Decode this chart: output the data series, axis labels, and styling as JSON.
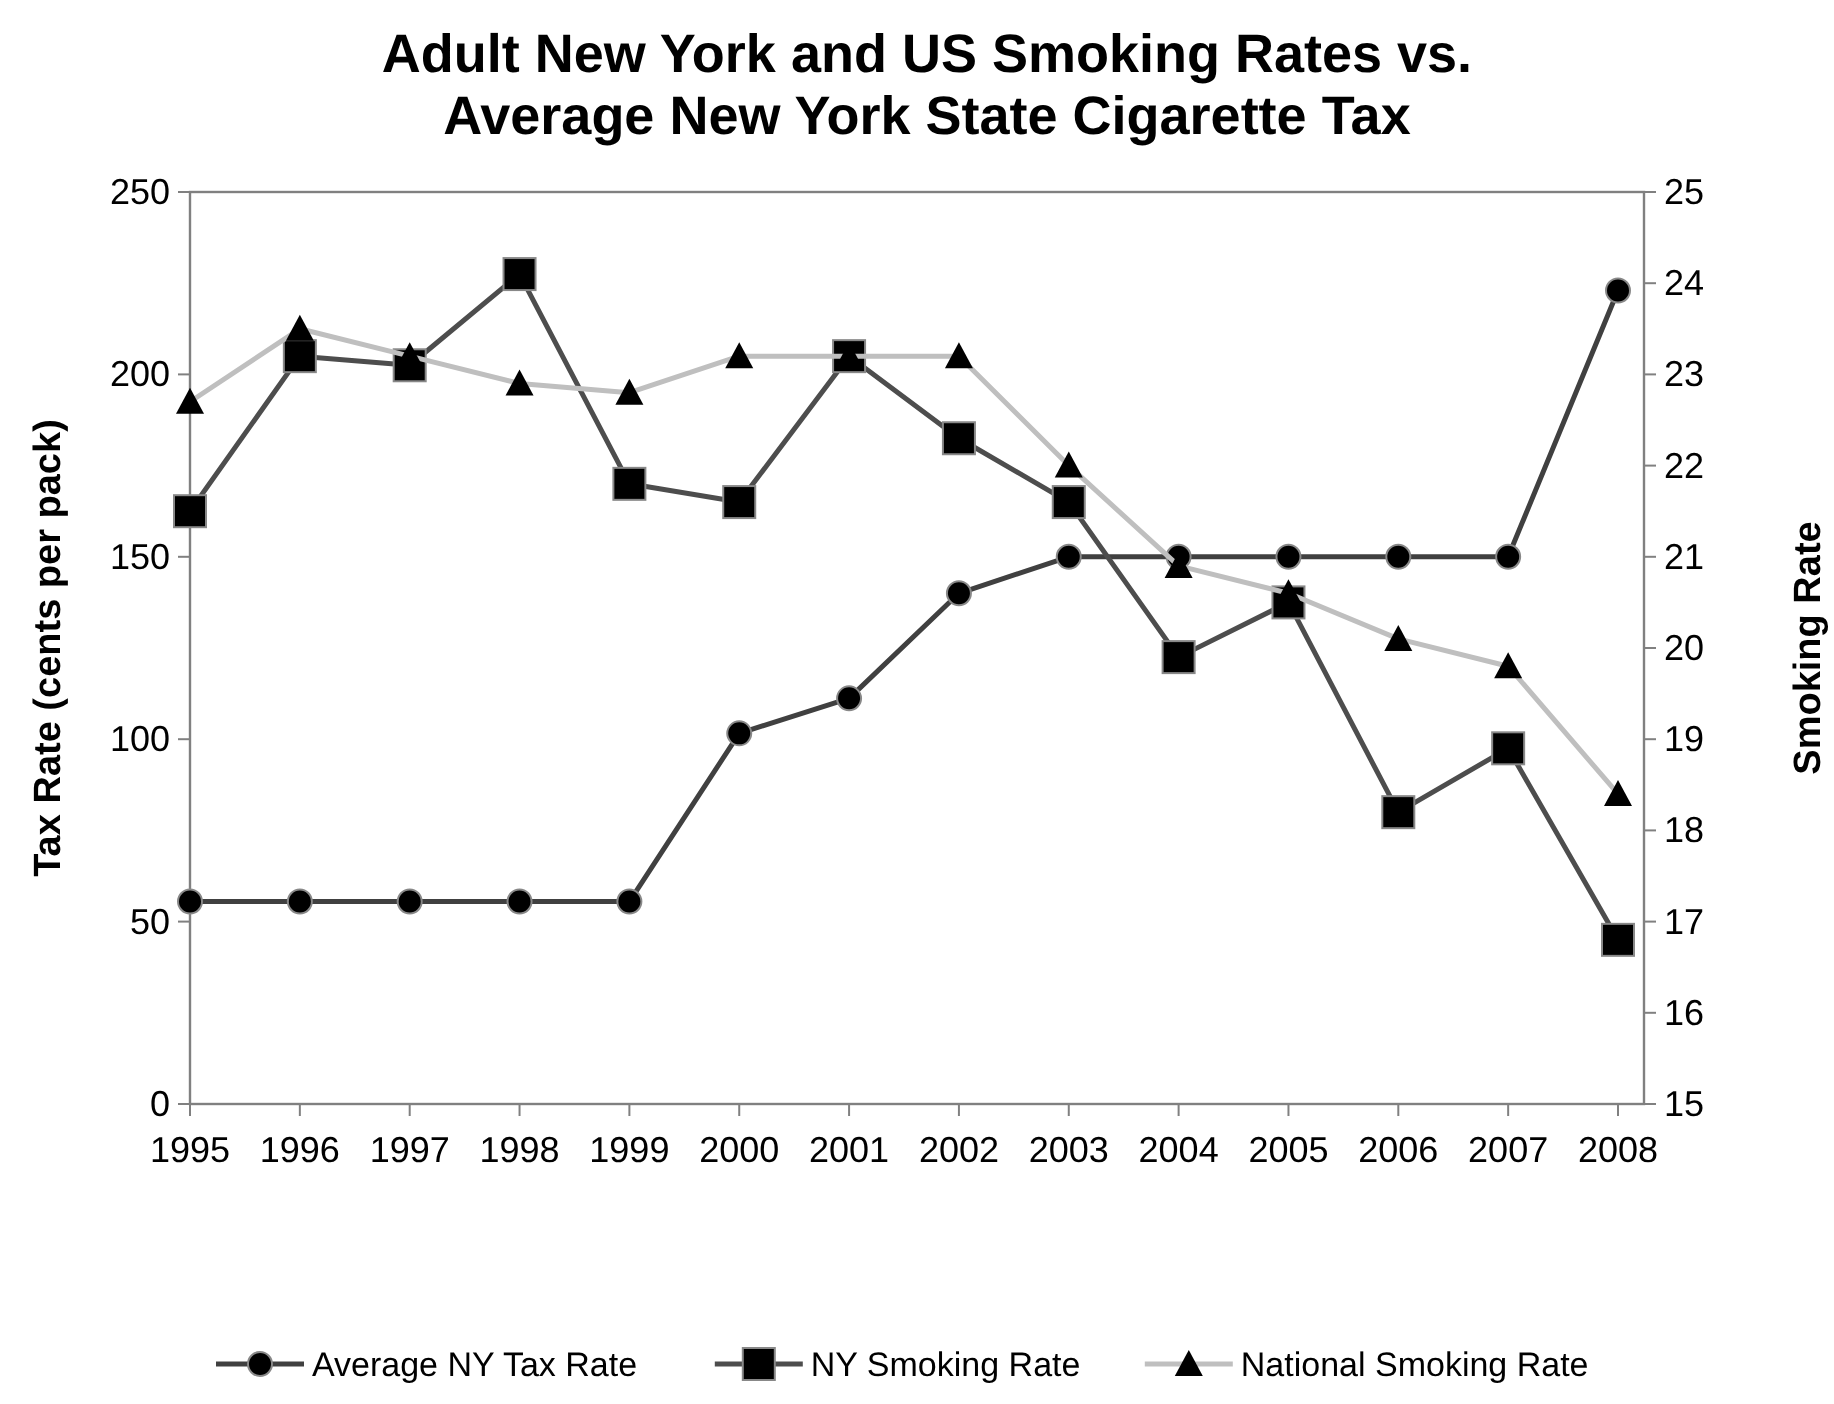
{
  "chart_data": {
    "type": "line",
    "title": "Adult New York and US Smoking Rates vs. Average New York State Cigarette Tax",
    "ylabel": "Tax Rate (cents per pack)",
    "y2label": "Smoking Rate",
    "categories": [
      "1995",
      "1996",
      "1997",
      "1998",
      "1999",
      "2000",
      "2001",
      "2002",
      "2003",
      "2004",
      "2005",
      "2006",
      "2007",
      "2008"
    ],
    "series": [
      {
        "name": "Average NY Tax Rate",
        "color": "#404040",
        "marker": "circle",
        "values": [
          55.5,
          55.5,
          55.5,
          55.5,
          55.5,
          101.6,
          111.2,
          140,
          150,
          150,
          150,
          150,
          150,
          223
        ]
      },
      {
        "name": "NY Smoking Rate",
        "color": "#4d4d4d",
        "marker": "square",
        "axis": "y2",
        "values": [
          21.5,
          23.2,
          23.1,
          24.1,
          21.8,
          21.6,
          23.2,
          22.3,
          21.6,
          19.9,
          20.5,
          18.2,
          18.9,
          16.8
        ]
      },
      {
        "name": "National Smoking Rate",
        "color": "#bfbfbf",
        "marker": "triangle",
        "axis": "y2",
        "values": [
          22.7,
          23.5,
          23.2,
          22.9,
          22.8,
          23.2,
          23.2,
          23.2,
          22.0,
          20.9,
          20.6,
          20.1,
          19.8,
          18.4
        ]
      }
    ],
    "ylim": [
      0,
      250
    ],
    "yticks": [
      0,
      50,
      100,
      150,
      200,
      250
    ],
    "y2lim": [
      15,
      25
    ],
    "y2ticks": [
      15,
      16,
      17,
      18,
      19,
      20,
      21,
      22,
      23,
      24,
      25
    ],
    "grid": false,
    "legend": "bottom",
    "line_style": "solid"
  }
}
